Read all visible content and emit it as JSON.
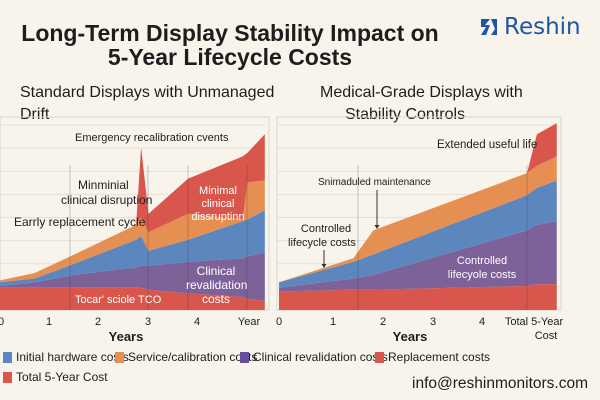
{
  "header": {
    "title_line1": "Long-Term Display Stability Impact on",
    "title_line2": "5-Year Lifecycle Costs",
    "brand": "Reshin",
    "email": "info@reshinmonitors.com"
  },
  "colors": {
    "replacement": "#d8564b",
    "clinical": "#7d6199",
    "hardware": "#5c86be",
    "service": "#e68f52",
    "total": "#d8564b",
    "background": "#f8f4ec",
    "brand": "#1f56a4"
  },
  "legend": [
    {
      "label": "Initial hardware costs",
      "color": "#5c86be"
    },
    {
      "label": "Service/calibration costs",
      "color": "#e68f52"
    },
    {
      "label": "Clinical revalidation costs",
      "color": "#7d6199"
    },
    {
      "label": "Replacement costs",
      "color": "#d8564b"
    },
    {
      "label": "Total 5-Year Cost",
      "color": "#d8564b"
    }
  ],
  "chart_data": [
    {
      "type": "area",
      "stacked": true,
      "title_line1": "Standard Displays with Unmanaged",
      "title_line2": "Drift",
      "xlabel": "Years",
      "x_tick_labels": [
        "0",
        "1",
        "2",
        "3",
        "4",
        "Year"
      ],
      "xlim": [
        0,
        5.35
      ],
      "ylim": [
        0,
        100
      ],
      "grid": true,
      "x": [
        0,
        0.7,
        1.5,
        2.75,
        2.85,
        3.0,
        3.8,
        4.9,
        5.0,
        5.35
      ],
      "series": [
        {
          "key": "replacement",
          "values": [
            12,
            12,
            12,
            12,
            12,
            11,
            9,
            7,
            6,
            5
          ]
        },
        {
          "key": "clinical",
          "values": [
            1,
            3,
            7,
            11,
            12,
            13,
            17,
            21,
            23,
            26
          ]
        },
        {
          "key": "hardware",
          "values": [
            2,
            2,
            6,
            15,
            16,
            8,
            12,
            20,
            20,
            23
          ]
        },
        {
          "key": "service",
          "values": [
            1,
            3,
            5,
            8,
            10,
            10,
            14,
            1,
            20,
            16
          ]
        },
        {
          "key": "total",
          "values": [
            0,
            0,
            0,
            0,
            38,
            10,
            19,
            34,
            16,
            25
          ]
        }
      ],
      "annotations": {
        "emergency": "Emergency recalibration cvents",
        "minimal1_a": "Minminial",
        "minimal1_b": "clinical disruption",
        "early": "Earrly replacement cycle",
        "minimal2_a": "Minimal",
        "minimal2_b": "clinical",
        "minimal2_c": "dissruptinn",
        "clinical_a": "Clinical",
        "clinical_b": "revalidation",
        "clinical_c": "costs",
        "tco": "Tocar' sciole TCO"
      }
    },
    {
      "type": "area",
      "stacked": true,
      "title_line1": "Medical-Grade Displays with",
      "title_line2": "Stability Controls",
      "xlabel": "Years",
      "x_tick_labels": [
        "0",
        "1",
        "2",
        "3",
        "4",
        "Total 5-Year",
        "Cost"
      ],
      "xlim": [
        0,
        5.6
      ],
      "ylim": [
        0,
        100
      ],
      "grid": true,
      "x": [
        0,
        1.5,
        1.9,
        5.0,
        5.2,
        5.6
      ],
      "series": [
        {
          "key": "replacement",
          "values": [
            10,
            11,
            11,
            13,
            14,
            14
          ]
        },
        {
          "key": "clinical",
          "values": [
            2,
            6,
            8,
            30,
            32,
            34
          ]
        },
        {
          "key": "hardware",
          "values": [
            3,
            9,
            11,
            19,
            20,
            22
          ]
        },
        {
          "key": "service",
          "values": [
            0,
            2,
            13,
            12,
            12,
            13
          ]
        },
        {
          "key": "total",
          "values": [
            0,
            0,
            0,
            0,
            17,
            18
          ]
        }
      ],
      "annotations": {
        "extended": "Extended useful life",
        "scheduled": "Snimaduled maintenance",
        "controlled1_a": "Controlled",
        "controlled1_b": "lifecycle costs",
        "controlled2_a": "Controlled",
        "controlled2_b": "lifecyole costs"
      }
    }
  ]
}
